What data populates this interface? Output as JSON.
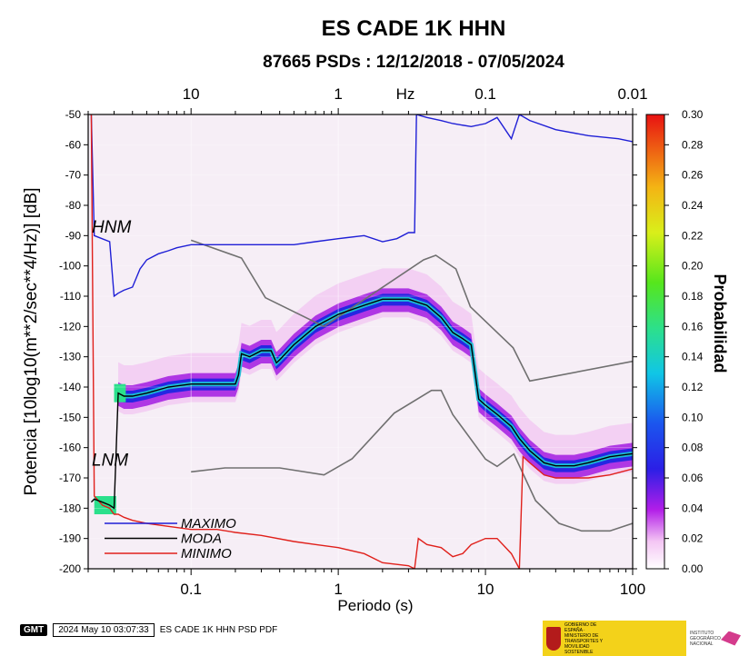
{
  "chart_data": {
    "type": "heatmap",
    "title": "ES CADE 1K HHN",
    "subtitle": "87665 PSDs : 12/12/2018 - 07/05/2024",
    "xlabel": "Periodo (s)",
    "ylabel": "Potencia [10log10(m**2/sec**4/Hz)] [dB]",
    "xscale": "log",
    "xlim": [
      0.02,
      100
    ],
    "ylim": [
      -200,
      -50
    ],
    "x_ticks": [
      "0.1",
      "1",
      "10",
      "100"
    ],
    "y_ticks": [
      "-50",
      "-60",
      "-70",
      "-80",
      "-90",
      "-100",
      "-110",
      "-120",
      "-130",
      "-140",
      "-150",
      "-160",
      "-170",
      "-180",
      "-190",
      "-200"
    ],
    "top_axis": {
      "label": "Hz",
      "ticks": [
        "10",
        "1",
        "0.1",
        "0.01"
      ]
    },
    "colorbar": {
      "label": "Probabilidad",
      "range": [
        0,
        0.3
      ],
      "ticks": [
        "0.00",
        "0.02",
        "0.04",
        "0.06",
        "0.08",
        "0.10",
        "0.12",
        "0.14",
        "0.16",
        "0.18",
        "0.20",
        "0.22",
        "0.24",
        "0.26",
        "0.28",
        "0.30"
      ]
    },
    "model_labels": [
      "HNM",
      "LNM"
    ],
    "legend": {
      "placement": "bottom-left",
      "entries": [
        "MAXIMO",
        "MODA",
        "MINIMO"
      ]
    },
    "series": [
      {
        "name": "MAXIMO",
        "color": "#1f1fd6",
        "x": [
          0.021,
          0.022,
          0.028,
          0.03,
          0.032,
          0.035,
          0.04,
          0.045,
          0.05,
          0.06,
          0.07,
          0.08,
          0.1,
          0.15,
          0.2,
          0.3,
          0.5,
          0.7,
          1.0,
          1.5,
          2.0,
          2.5,
          3.0,
          3.3,
          3.4,
          4,
          5,
          6,
          8,
          10,
          12,
          15,
          17,
          20,
          30,
          50,
          80,
          100
        ],
        "y": [
          -50,
          -90,
          -92,
          -110,
          -109,
          -108,
          -107,
          -101,
          -98,
          -96,
          -95,
          -94,
          -93,
          -93,
          -93,
          -93,
          -93,
          -92,
          -91,
          -90,
          -92,
          -91,
          -89,
          -89,
          -50,
          -51,
          -52,
          -53,
          -54,
          -53,
          -51,
          -58,
          -50,
          -52,
          -55,
          -57,
          -58,
          -59
        ]
      },
      {
        "name": "MODA",
        "color": "#000000",
        "x": [
          0.021,
          0.022,
          0.025,
          0.028,
          0.03,
          0.032,
          0.035,
          0.04,
          0.05,
          0.07,
          0.1,
          0.15,
          0.2,
          0.21,
          0.22,
          0.25,
          0.3,
          0.35,
          0.38,
          0.4,
          0.5,
          0.7,
          1.0,
          1.5,
          2.0,
          3.0,
          4.0,
          5.0,
          6.0,
          7.0,
          8.0,
          9.0,
          10,
          12,
          15,
          17,
          20,
          25,
          30,
          40,
          50,
          70,
          100
        ],
        "y": [
          -178,
          -177,
          -178,
          -179,
          -180,
          -142,
          -143,
          -143,
          -142,
          -140,
          -139,
          -139,
          -139,
          -136,
          -129,
          -130,
          -128,
          -128,
          -132,
          -131,
          -126,
          -120,
          -116,
          -113,
          -111,
          -111,
          -113,
          -117,
          -122,
          -124,
          -126,
          -144,
          -146,
          -149,
          -153,
          -157,
          -161,
          -165,
          -166,
          -166,
          -165,
          -163,
          -162
        ]
      },
      {
        "name": "MINIMO",
        "color": "#e0201b",
        "x": [
          0.021,
          0.022,
          0.025,
          0.028,
          0.03,
          0.032,
          0.035,
          0.04,
          0.05,
          0.07,
          0.1,
          0.15,
          0.2,
          0.3,
          0.5,
          0.7,
          1.0,
          1.5,
          2.0,
          3.0,
          3.3,
          3.5,
          4,
          5,
          6,
          7,
          8,
          10,
          12,
          15,
          17,
          18,
          20,
          25,
          30,
          50,
          70,
          100
        ],
        "y": [
          -50,
          -176,
          -179,
          -180,
          -182,
          -182,
          -183,
          -184,
          -185,
          -186,
          -187,
          -187,
          -188,
          -189,
          -191,
          -192,
          -193,
          -195,
          -198,
          -199,
          -200,
          -190,
          -192,
          -193,
          -196,
          -195,
          -192,
          -190,
          -190,
          -195,
          -200,
          -163,
          -165,
          -169,
          -170,
          -170,
          -169,
          -167
        ]
      },
      {
        "name": "HNM",
        "color": "#707070",
        "x": [
          0.1,
          0.22,
          0.32,
          0.8,
          3.8,
          4.6,
          6.3,
          7.9,
          15.4,
          20,
          100
        ],
        "y": [
          -91.5,
          -97.4,
          -110.5,
          -120,
          -98,
          -96.5,
          -101,
          -113.5,
          -127,
          -138,
          -131.5
        ]
      },
      {
        "name": "LNM",
        "color": "#707070",
        "x": [
          0.1,
          0.17,
          0.4,
          0.8,
          1.24,
          2.4,
          4.3,
          5.0,
          6.0,
          10,
          12,
          15.6,
          21.9,
          31.6,
          45,
          70,
          100
        ],
        "y": [
          -168,
          -166.7,
          -166.7,
          -169,
          -163.7,
          -148.6,
          -141.1,
          -141.1,
          -149.1,
          -163.8,
          -166.2,
          -162.1,
          -177.5,
          -185,
          -187.5,
          -187.5,
          -185
        ]
      }
    ]
  },
  "footer": {
    "gmt": "GMT",
    "timestamp": "2024 May 10 03:07:33",
    "caption": "ES CADE 1K HHN PSD PDF"
  },
  "logos": {
    "ministry": "GOBIERNO DE ESPAÑA · MINISTERIO DE TRANSPORTES Y MOVILIDAD SOSTENIBLE",
    "institute": "INSTITUTO GEOGRÁFICO NACIONAL"
  }
}
